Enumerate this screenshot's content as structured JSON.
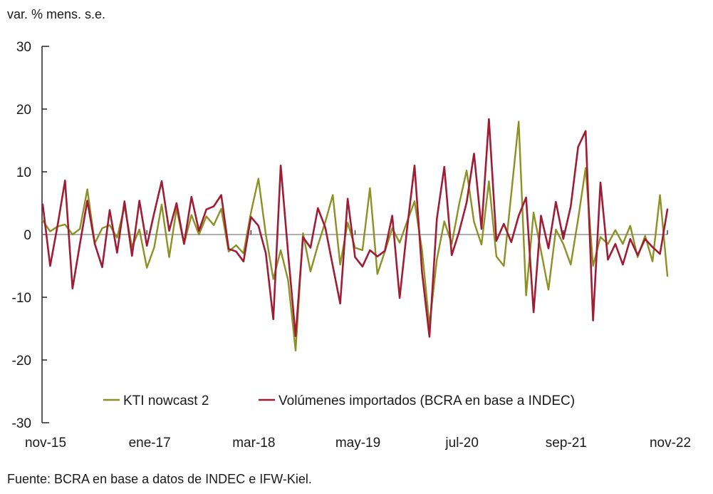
{
  "title": "var. % mens. s.e.",
  "source_note": "Fuente: BCRA en base a datos de INDEC e IFW-Kiel.",
  "colors": {
    "kti": "#8B9122",
    "volumenes": "#A01C35",
    "zero_line": "#808080",
    "axis": "#262626",
    "text": "#1a1a1a"
  },
  "chart_data": {
    "type": "line",
    "title": "var. % mens. s.e.",
    "ylabel": "var. % mens. s.e.",
    "xlabel": "",
    "ylim": [
      -30,
      30
    ],
    "y_ticks": [
      30,
      20,
      10,
      0,
      -10,
      -20,
      -30
    ],
    "x_tick_labels": [
      "nov-15",
      "ene-17",
      "mar-18",
      "may-19",
      "jul-20",
      "sep-21",
      "nov-22"
    ],
    "x_tick_every_months": 14,
    "grid": "zero-line-only",
    "legend_position": "bottom-inside",
    "categories": [
      "nov-15",
      "dic-15",
      "ene-16",
      "feb-16",
      "mar-16",
      "abr-16",
      "may-16",
      "jun-16",
      "jul-16",
      "ago-16",
      "sep-16",
      "oct-16",
      "nov-16",
      "dic-16",
      "ene-17",
      "feb-17",
      "mar-17",
      "abr-17",
      "may-17",
      "jun-17",
      "jul-17",
      "ago-17",
      "sep-17",
      "oct-17",
      "nov-17",
      "dic-17",
      "ene-18",
      "feb-18",
      "mar-18",
      "abr-18",
      "may-18",
      "jun-18",
      "jul-18",
      "ago-18",
      "sep-18",
      "oct-18",
      "nov-18",
      "dic-18",
      "ene-19",
      "feb-19",
      "mar-19",
      "abr-19",
      "may-19",
      "jun-19",
      "jul-19",
      "ago-19",
      "sep-19",
      "oct-19",
      "nov-19",
      "dic-19",
      "ene-20",
      "feb-20",
      "mar-20",
      "abr-20",
      "may-20",
      "jun-20",
      "jul-20",
      "ago-20",
      "sep-20",
      "oct-20",
      "nov-20",
      "dic-20",
      "ene-21",
      "feb-21",
      "mar-21",
      "abr-21",
      "may-21",
      "jun-21",
      "jul-21",
      "ago-21",
      "sep-21",
      "oct-21",
      "nov-21",
      "dic-21",
      "ene-22",
      "feb-22",
      "mar-22",
      "abr-22",
      "may-22",
      "jun-22",
      "jul-22",
      "ago-22",
      "sep-22",
      "oct-22",
      "nov-22"
    ],
    "series": [
      {
        "name": "KTI nowcast 2",
        "color": "#8B9122",
        "values": [
          2.2,
          0.5,
          1.3,
          1.6,
          0,
          0.9,
          7.2,
          -1.4,
          1,
          1.5,
          -0.5,
          4.5,
          -2,
          0.8,
          -5.3,
          -2,
          4.8,
          -3.6,
          4.1,
          -1.5,
          3.1,
          0,
          2.9,
          1.5,
          4.1,
          -2.7,
          -1.7,
          -3,
          3.5,
          8.9,
          0,
          -7.1,
          -2.5,
          -7.3,
          -18.5,
          0.2,
          -5.9,
          -1.7,
          2,
          6.3,
          -4.8,
          1.9,
          -2.1,
          -2.5,
          7.4,
          -6.3,
          -2.7,
          1,
          -1.3,
          2.1,
          5.3,
          -2.5,
          -14.5,
          -4,
          2.1,
          -1.5,
          4.9,
          10.2,
          2,
          -1.6,
          8.5,
          -3.5,
          -5,
          6.5,
          18,
          -9.7,
          3.5,
          -2.6,
          -8.8,
          0.8,
          -1.5,
          -4.8,
          2.5,
          10.6,
          -5,
          -0.4,
          -1.5,
          0.7,
          -1.5,
          1.4,
          -3.6,
          -0.2,
          -4.3,
          6.3,
          -6.6
        ]
      },
      {
        "name": "Volúmenes importados (BCRA en base a INDEC)",
        "color": "#A01C35",
        "values": [
          4.8,
          -5,
          1.5,
          8.6,
          -8.6,
          -1.5,
          5.4,
          -1.5,
          -5.2,
          3.9,
          -2.9,
          5.3,
          -3.4,
          5.4,
          -1.8,
          3.5,
          8.5,
          0.6,
          5,
          -1.5,
          6,
          0.6,
          4,
          4.5,
          6.3,
          -2.3,
          -2.7,
          -4.3,
          2.8,
          1.4,
          -3,
          -13.5,
          11,
          -3,
          -16.2,
          -0.4,
          -2.1,
          4.2,
          1.1,
          -5,
          -11,
          5.7,
          -3.6,
          -5.1,
          -2.5,
          -3.5,
          -2.6,
          3,
          -10.1,
          1,
          11,
          -6,
          -16.3,
          2.5,
          10.8,
          -3.3,
          0.5,
          5.1,
          12.9,
          0.9,
          18.4,
          -1,
          1.7,
          -1.2,
          3,
          5.9,
          -12.4,
          3,
          -2.2,
          5.2,
          -0.7,
          4.5,
          14,
          16.5,
          -13.7,
          8.3,
          -4,
          -1.5,
          -4.8,
          -0.7,
          -3.3,
          -0.7,
          -2,
          -3.1,
          4
        ]
      }
    ]
  }
}
